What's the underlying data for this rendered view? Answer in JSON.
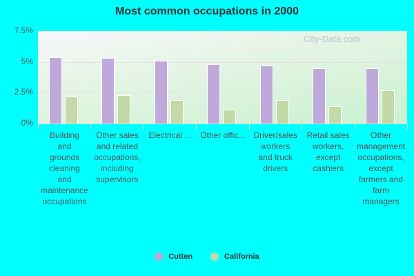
{
  "chart_data": {
    "type": "bar",
    "title": "Most common occupations in 2000",
    "xlabel": "",
    "ylabel": "",
    "ylim": [
      0,
      7.5
    ],
    "yticks": [
      "0%",
      "2.5%",
      "5%",
      "7.5%"
    ],
    "grid": true,
    "legend_position": "bottom",
    "categories": [
      "Building and grounds cleaning and maintenance occupations",
      "Other sales and related occupations, including supervisors",
      "Electrical ...",
      "Other offic...",
      "Driver/sales workers and truck drivers",
      "Retail sales workers, except cashiers",
      "Other management occupations, except farmers and farm managers"
    ],
    "category_display": [
      "Building\nand\ngrounds\ncleaning\nand\nmaintenance\noccupations",
      "Other sales\nand related\noccupations,\nincluding\nsupervisors",
      "Electrical ...",
      "Other offic...",
      "Driver/sales\nworkers\nand truck\ndrivers",
      "Retail sales\nworkers,\nexcept\ncashiers",
      "Other\nmanagement\noccupations,\nexcept\nfarmers and\nfarm\nmanagers"
    ],
    "series": [
      {
        "name": "Cutten",
        "color": "#bea9da",
        "values": [
          5.4,
          5.3,
          5.1,
          4.8,
          4.7,
          4.5,
          4.5
        ]
      },
      {
        "name": "California",
        "color": "#c3d9a8",
        "values": [
          2.2,
          2.3,
          1.9,
          1.1,
          1.9,
          1.4,
          2.7
        ]
      }
    ]
  },
  "watermark": "City-Data.com"
}
